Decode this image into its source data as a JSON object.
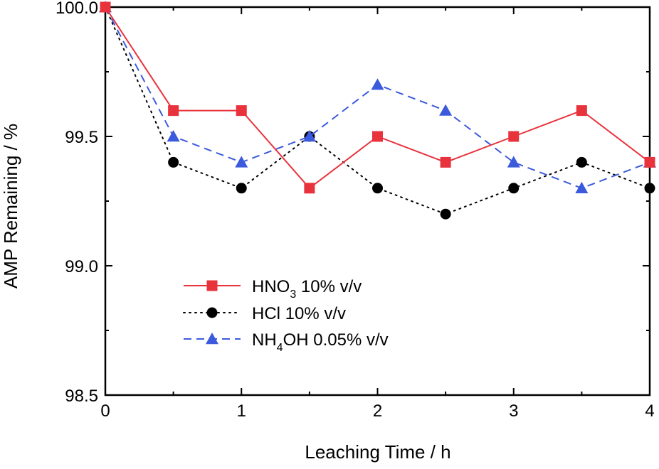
{
  "chart_data": {
    "type": "line",
    "title": "",
    "xlabel": "Leaching Time / h",
    "ylabel": "AMP Remaining / %",
    "xlim": [
      0,
      4
    ],
    "ylim": [
      98.5,
      100.0
    ],
    "xticks": [
      0,
      1,
      2,
      3,
      4
    ],
    "xtick_labels": [
      "0",
      "1",
      "2",
      "3",
      "4"
    ],
    "yticks": [
      98.5,
      99.0,
      99.5,
      100.0
    ],
    "ytick_labels": [
      "98.5",
      "99.0",
      "99.5",
      "100.0"
    ],
    "grid": false,
    "legend_position": "lower-left",
    "x": [
      0,
      0.5,
      1,
      1.5,
      2,
      2.5,
      3,
      3.5,
      4
    ],
    "series": [
      {
        "name": "HNO3 10% v/v",
        "label_main": "HNO",
        "label_sub": "3",
        "label_rest": " 10% v/v",
        "color": "#e8323c",
        "marker": "square",
        "line_style": "solid",
        "values": [
          100.0,
          99.6,
          99.6,
          99.3,
          99.5,
          99.4,
          99.5,
          99.6,
          99.4
        ]
      },
      {
        "name": "HCl 10% v/v",
        "label_main": "HCl 10% v/v",
        "label_sub": "",
        "label_rest": "",
        "color": "#000000",
        "marker": "circle",
        "line_style": "dotted",
        "values": [
          100.0,
          99.4,
          99.3,
          99.5,
          99.3,
          99.2,
          99.3,
          99.4,
          99.3
        ]
      },
      {
        "name": "NH4OH 0.05% v/v",
        "label_main": "NH",
        "label_sub": "4",
        "label_rest": "OH 0.05% v/v",
        "color": "#3c5adc",
        "marker": "triangle",
        "line_style": "dashed",
        "values": [
          100.0,
          99.5,
          99.4,
          99.5,
          99.7,
          99.6,
          99.4,
          99.3,
          99.4
        ]
      }
    ]
  }
}
